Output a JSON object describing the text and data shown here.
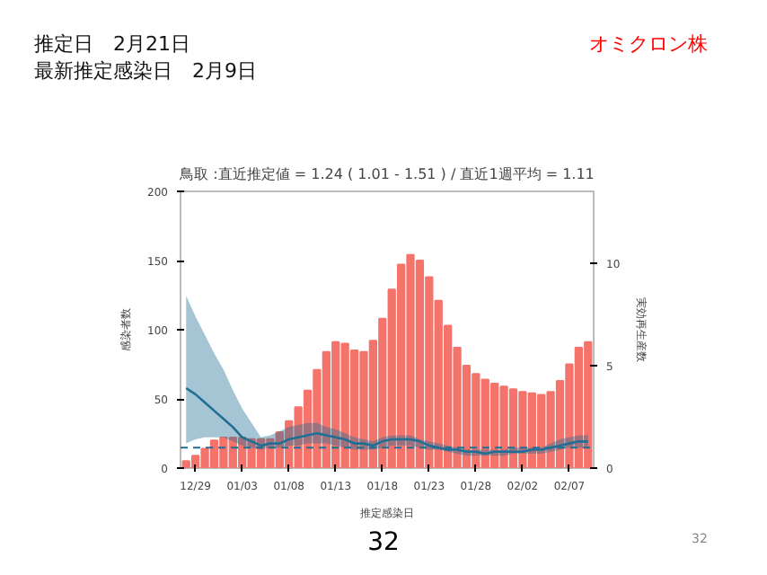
{
  "chart_data": {
    "type": "bar",
    "title": "鳥取 :直近推定値 = 1.24 ( 1.01 - 1.51 ) / 直近1週平均 = 1.11",
    "xlabel": "推定感染日",
    "ylabel": "感染者数",
    "y2label": "実効再生産数",
    "annotations": [
      "推定日　2月21日",
      "最新推定感染日　2月9日",
      "オミクロン株",
      "32",
      "32"
    ],
    "categories": [
      null,
      "12/29",
      null,
      null,
      null,
      null,
      "01/03",
      null,
      null,
      null,
      null,
      "01/08",
      null,
      null,
      null,
      null,
      "01/13",
      null,
      null,
      null,
      null,
      "01/18",
      null,
      null,
      null,
      null,
      "01/23",
      null,
      null,
      null,
      null,
      "01/28",
      null,
      null,
      null,
      null,
      "02/02",
      null,
      null,
      null,
      null,
      "02/07",
      null,
      null
    ],
    "series": [
      {
        "color": "#f4736b",
        "values": [
          5,
          9,
          14,
          20,
          22,
          22,
          22,
          21,
          21,
          21,
          26,
          34,
          44,
          56,
          71,
          84,
          91,
          90,
          85,
          84,
          92,
          108,
          129,
          147,
          154,
          150,
          138,
          121,
          103,
          87,
          74,
          68,
          64,
          61,
          59,
          57,
          55,
          54,
          53,
          55,
          63,
          75,
          87,
          91
        ]
      },
      {
        "type": "line",
        "axis": "y2",
        "color": "#1f6f95",
        "values": [
          3.9,
          3.6,
          3.2,
          2.8,
          2.4,
          2.0,
          1.5,
          1.3,
          1.1,
          1.2,
          1.2,
          1.4,
          1.5,
          1.6,
          1.7,
          1.6,
          1.5,
          1.4,
          1.2,
          1.2,
          1.1,
          1.3,
          1.4,
          1.4,
          1.4,
          1.3,
          1.1,
          1.0,
          0.9,
          0.9,
          0.8,
          0.8,
          0.7,
          0.8,
          0.8,
          0.8,
          0.8,
          0.9,
          0.9,
          1.0,
          1.1,
          1.2,
          1.3,
          1.3
        ],
        "lower": [
          1.2,
          1.4,
          1.5,
          1.5,
          1.5,
          1.3,
          1.1,
          1.0,
          0.9,
          1.0,
          1.0,
          1.1,
          1.1,
          1.2,
          1.2,
          1.2,
          1.1,
          1.0,
          0.9,
          0.9,
          0.9,
          1.0,
          1.1,
          1.1,
          1.1,
          1.0,
          0.9,
          0.9,
          0.8,
          0.7,
          0.6,
          0.6,
          0.6,
          0.6,
          0.6,
          0.7,
          0.7,
          0.7,
          0.7,
          0.8,
          0.9,
          1.0,
          1.0,
          1.0
        ],
        "upper": [
          8.4,
          7.4,
          6.5,
          5.6,
          4.8,
          3.8,
          2.9,
          2.2,
          1.5,
          1.6,
          1.8,
          2.0,
          2.1,
          2.2,
          2.2,
          2.0,
          1.9,
          1.7,
          1.5,
          1.4,
          1.3,
          1.5,
          1.6,
          1.6,
          1.6,
          1.4,
          1.3,
          1.2,
          1.1,
          1.0,
          0.9,
          0.9,
          0.9,
          0.9,
          0.9,
          1.0,
          1.0,
          1.0,
          1.0,
          1.2,
          1.4,
          1.5,
          1.6,
          1.6
        ]
      }
    ],
    "ylim": [
      0,
      200
    ],
    "yticks": [
      0,
      50,
      100,
      150,
      200
    ],
    "y2lim": [
      0,
      13.5
    ],
    "y2ticks": [
      0,
      5,
      10
    ],
    "ref_lines": [
      {
        "axis": "y2",
        "value": 1,
        "color": "#1f6f95",
        "line_style": "dashed"
      }
    ],
    "grid": false
  }
}
